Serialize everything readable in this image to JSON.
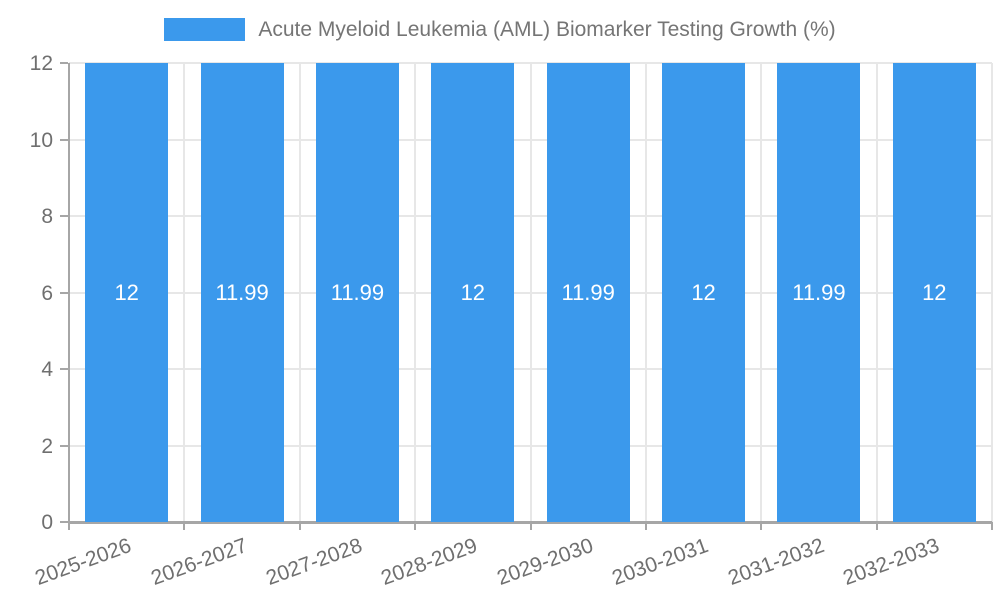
{
  "chart_data": {
    "type": "bar",
    "title": "Acute Myeloid Leukemia (AML) Biomarker Testing Growth (%)",
    "categories": [
      "2025-2026",
      "2026-2027",
      "2027-2028",
      "2028-2029",
      "2029-2030",
      "2030-2031",
      "2031-2032",
      "2032-2033"
    ],
    "values": [
      12,
      11.99,
      11.99,
      12,
      11.99,
      12,
      11.99,
      12
    ],
    "value_labels": [
      "12",
      "11.99",
      "11.99",
      "12",
      "11.99",
      "12",
      "11.99",
      "12"
    ],
    "xlabel": "",
    "ylabel": "",
    "ylim": [
      0,
      12
    ],
    "yticks": [
      0,
      2,
      4,
      6,
      8,
      10,
      12
    ],
    "ytick_labels": [
      "0",
      "2",
      "4",
      "6",
      "8",
      "10",
      "12"
    ],
    "grid": true,
    "legend_position": "top",
    "x_tick_rotation_deg": -20,
    "colors": {
      "bar": "#3B99EC",
      "bar_label": "#FFFFFF",
      "axis_text": "#6F6F6F",
      "legend_text": "#757575",
      "grid_line": "#E7E7E7",
      "axis_line": "#A6A6A6",
      "background": "#FFFFFF"
    }
  }
}
